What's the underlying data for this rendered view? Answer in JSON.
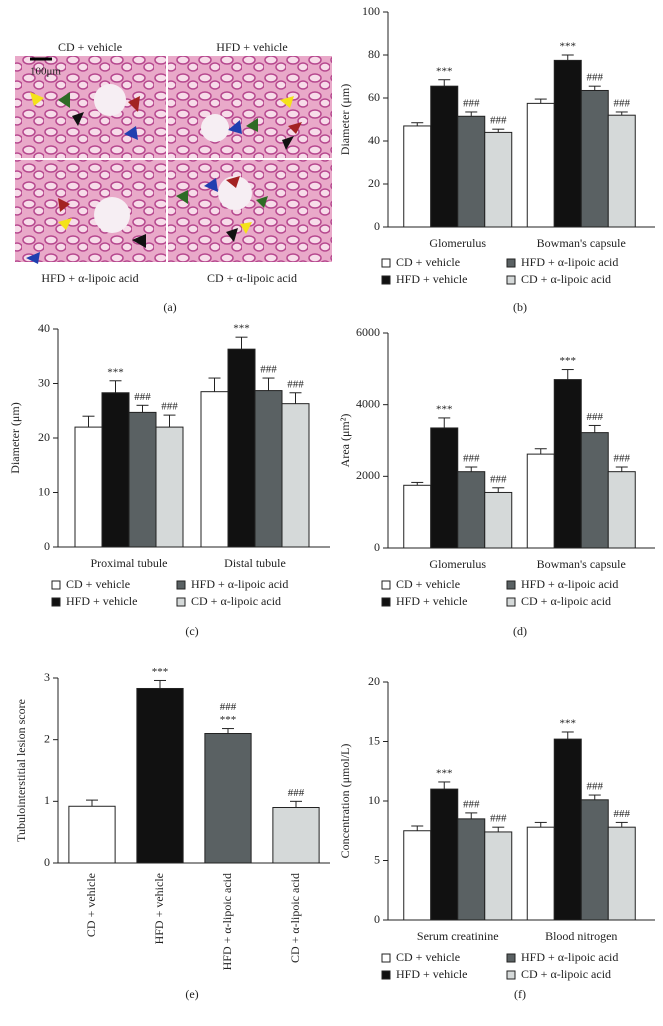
{
  "image_panel": {
    "labels": [
      "CD + vehicle",
      "HFD + vehicle",
      "HFD + α-lipoic acid",
      "CD + α-lipoic acid"
    ],
    "scale_bar": "100μm",
    "caption": "(a)"
  },
  "chart_data": [
    {
      "type": "bar",
      "caption": "(b)",
      "y_label": "Diameter (μm)",
      "categories": [
        "Glomerulus",
        "Bowman's capsule"
      ],
      "ylim": [
        0,
        100
      ],
      "yticks": [
        0,
        20,
        40,
        60,
        80,
        100
      ],
      "series": [
        {
          "name": "CD + vehicle",
          "color": "#ffffff",
          "values": [
            47,
            57.5
          ],
          "errors": [
            1.5,
            2
          ],
          "significance": [
            null,
            null
          ]
        },
        {
          "name": "HFD + vehicle",
          "color": "#111111",
          "values": [
            65.5,
            77.5
          ],
          "errors": [
            3,
            2.5
          ],
          "significance": [
            [
              "***"
            ],
            [
              "***"
            ]
          ]
        },
        {
          "name": "HFD + α-lipoic acid",
          "color": "#5a6163",
          "values": [
            51.5,
            63.5
          ],
          "errors": [
            2,
            2
          ],
          "significance": [
            [
              "###"
            ],
            [
              "###"
            ]
          ]
        },
        {
          "name": "CD + α-lipoic acid",
          "color": "#d5d9d9",
          "values": [
            44,
            52
          ],
          "errors": [
            1.5,
            1.5
          ],
          "significance": [
            [
              "###"
            ],
            [
              "###"
            ]
          ]
        }
      ]
    },
    {
      "type": "bar",
      "caption": "(c)",
      "y_label": "Diameter (μm)",
      "categories": [
        "Proximal tubule",
        "Distal tubule"
      ],
      "ylim": [
        0,
        40
      ],
      "yticks": [
        0,
        10,
        20,
        30,
        40
      ],
      "series": [
        {
          "name": "CD + vehicle",
          "color": "#ffffff",
          "values": [
            22,
            28.5
          ],
          "errors": [
            2,
            2.5
          ],
          "significance": [
            null,
            null
          ]
        },
        {
          "name": "HFD + vehicle",
          "color": "#111111",
          "values": [
            28.3,
            36.3
          ],
          "errors": [
            2.2,
            2.2
          ],
          "significance": [
            [
              "***"
            ],
            [
              "***"
            ]
          ]
        },
        {
          "name": "HFD + α-lipoic acid",
          "color": "#5a6163",
          "values": [
            24.7,
            28.7
          ],
          "errors": [
            1.3,
            2.3
          ],
          "significance": [
            [
              "###"
            ],
            [
              "###"
            ]
          ]
        },
        {
          "name": "CD + α-lipoic acid",
          "color": "#d5d9d9",
          "values": [
            22,
            26.3
          ],
          "errors": [
            2.2,
            2
          ],
          "significance": [
            [
              "###"
            ],
            [
              "###"
            ]
          ]
        }
      ]
    },
    {
      "type": "bar",
      "caption": "(d)",
      "y_label": "Area (μm²)",
      "categories": [
        "Glomerulus",
        "Bowman's capsule"
      ],
      "ylim": [
        0,
        6000
      ],
      "yticks": [
        0,
        2000,
        4000,
        6000
      ],
      "series": [
        {
          "name": "CD + vehicle",
          "color": "#ffffff",
          "values": [
            1750,
            2620
          ],
          "errors": [
            80,
            150
          ],
          "significance": [
            null,
            null
          ]
        },
        {
          "name": "HFD + vehicle",
          "color": "#111111",
          "values": [
            3350,
            4700
          ],
          "errors": [
            280,
            280
          ],
          "significance": [
            [
              "***"
            ],
            [
              "***"
            ]
          ]
        },
        {
          "name": "HFD + α-lipoic acid",
          "color": "#5a6163",
          "values": [
            2130,
            3220
          ],
          "errors": [
            130,
            200
          ],
          "significance": [
            [
              "###"
            ],
            [
              "###"
            ]
          ]
        },
        {
          "name": "CD + α-lipoic acid",
          "color": "#d5d9d9",
          "values": [
            1550,
            2130
          ],
          "errors": [
            130,
            130
          ],
          "significance": [
            [
              "###"
            ],
            [
              "###"
            ]
          ]
        }
      ]
    },
    {
      "type": "simplebar",
      "caption": "(e)",
      "y_label": "Tubulointerstitial lesion score",
      "categories": [
        "CD + vehicle",
        "HFD + vehicle",
        "HFD + α-lipoic acid",
        "CD + α-lipoic acid"
      ],
      "ylim": [
        0,
        3
      ],
      "yticks": [
        0,
        1,
        2,
        3
      ],
      "values": [
        0.92,
        2.83,
        2.1,
        0.9
      ],
      "errors": [
        0.1,
        0.13,
        0.08,
        0.1
      ],
      "colors": [
        "#ffffff",
        "#111111",
        "#5a6163",
        "#d5d9d9"
      ],
      "significance": [
        null,
        [
          "***"
        ],
        [
          "###",
          "***"
        ],
        [
          "###"
        ]
      ]
    },
    {
      "type": "bar",
      "caption": "(f)",
      "y_label": "Concentration (μmol/L)",
      "categories": [
        "Serum creatinine",
        "Blood nitrogen"
      ],
      "ylim": [
        0,
        20
      ],
      "yticks": [
        0,
        5,
        10,
        15,
        20
      ],
      "series": [
        {
          "name": "CD + vehicle",
          "color": "#ffffff",
          "values": [
            7.5,
            7.8
          ],
          "errors": [
            0.4,
            0.4
          ],
          "significance": [
            null,
            null
          ]
        },
        {
          "name": "HFD + vehicle",
          "color": "#111111",
          "values": [
            11,
            15.2
          ],
          "errors": [
            0.6,
            0.6
          ],
          "significance": [
            [
              "***"
            ],
            [
              "***"
            ]
          ]
        },
        {
          "name": "HFD + α-lipoic acid",
          "color": "#5a6163",
          "values": [
            8.5,
            10.1
          ],
          "errors": [
            0.5,
            0.4
          ],
          "significance": [
            [
              "###"
            ],
            [
              "###"
            ]
          ]
        },
        {
          "name": "CD + α-lipoic acid",
          "color": "#d5d9d9",
          "values": [
            7.4,
            7.8
          ],
          "errors": [
            0.4,
            0.4
          ],
          "significance": [
            [
              "###"
            ],
            [
              "###"
            ]
          ]
        }
      ]
    }
  ]
}
